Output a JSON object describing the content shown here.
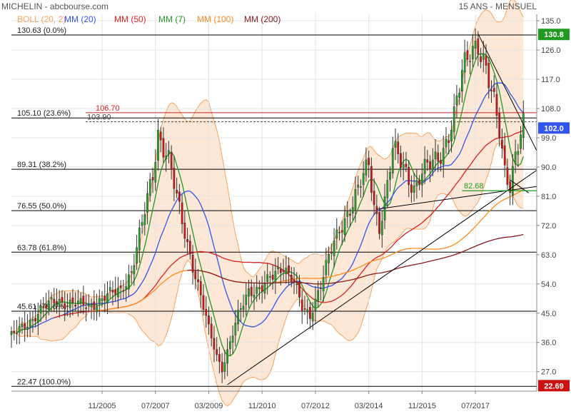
{
  "header": {
    "title": "MICHELIN - abcbourse.com",
    "period": "15 ANS - MENSUEL"
  },
  "legend": [
    {
      "label": "BOLL (20, 2)",
      "color": "#f4a460"
    },
    {
      "label": "MM (20)",
      "color": "#3355ee"
    },
    {
      "label": "MM (50)",
      "color": "#dd2222"
    },
    {
      "label": "MM (7)",
      "color": "#229922"
    },
    {
      "label": "MM (100)",
      "color": "#ff8c1a"
    },
    {
      "label": "MM (200)",
      "color": "#8b1a1a"
    }
  ],
  "chart_data": {
    "type": "candlestick",
    "x_tick_labels": [
      "11/2005",
      "07/2007",
      "03/2009",
      "11/2010",
      "07/2012",
      "03/2014",
      "11/2015",
      "07/2017"
    ],
    "x_tick_months": [
      35,
      55,
      75,
      95,
      115,
      135,
      155,
      175
    ],
    "x_range_months": [
      1,
      198
    ],
    "y_ticks": [
      27,
      36,
      45,
      54,
      63,
      72,
      81,
      90,
      99,
      108,
      117,
      126,
      135
    ],
    "y_range": [
      21,
      137
    ],
    "fibonacci_levels": [
      {
        "label": "130.63  (0.0%)",
        "value": 130.63
      },
      {
        "label": "105.10  (23.6%)",
        "value": 105.1
      },
      {
        "label": "89.31  (38.2%)",
        "value": 89.31
      },
      {
        "label": "76.55  (50.0%)",
        "value": 76.55
      },
      {
        "label": "63.78  (61.8%)",
        "value": 63.78
      },
      {
        "label": "45.61  (78.6%)",
        "value": 45.61
      },
      {
        "label": "22.47  (100.0%)",
        "value": 22.47
      }
    ],
    "annotations": [
      {
        "label": "106.70",
        "value": 106.7,
        "color": "#cc2222"
      },
      {
        "label": "103.90",
        "value": 103.9,
        "color": "#444444"
      },
      {
        "label": "82.68",
        "value": 82.68,
        "color": "#229922"
      }
    ],
    "price_labels": [
      {
        "label": "130.8",
        "value": 130.8,
        "color": "#229922"
      },
      {
        "label": "102.0",
        "value": 102.0,
        "color": "#3355ee"
      },
      {
        "label": "22.69",
        "value": 22.69,
        "color": "#cc1111"
      }
    ],
    "close_anchors": [
      [
        1,
        38
      ],
      [
        6,
        41
      ],
      [
        12,
        46
      ],
      [
        18,
        49
      ],
      [
        24,
        48
      ],
      [
        30,
        47
      ],
      [
        36,
        50
      ],
      [
        42,
        52
      ],
      [
        46,
        58
      ],
      [
        50,
        72
      ],
      [
        54,
        88
      ],
      [
        56,
        101
      ],
      [
        60,
        92
      ],
      [
        63,
        80
      ],
      [
        66,
        70
      ],
      [
        69,
        60
      ],
      [
        72,
        50
      ],
      [
        75,
        40
      ],
      [
        78,
        32
      ],
      [
        80,
        28
      ],
      [
        83,
        36
      ],
      [
        86,
        44
      ],
      [
        90,
        52
      ],
      [
        95,
        53
      ],
      [
        99,
        56
      ],
      [
        103,
        60
      ],
      [
        107,
        55
      ],
      [
        110,
        46
      ],
      [
        113,
        44
      ],
      [
        116,
        52
      ],
      [
        120,
        62
      ],
      [
        124,
        70
      ],
      [
        128,
        78
      ],
      [
        132,
        85
      ],
      [
        135,
        90
      ],
      [
        137,
        78
      ],
      [
        139,
        72
      ],
      [
        141,
        80
      ],
      [
        144,
        95
      ],
      [
        148,
        90
      ],
      [
        152,
        84
      ],
      [
        155,
        88
      ],
      [
        159,
        91
      ],
      [
        163,
        96
      ],
      [
        167,
        105
      ],
      [
        170,
        118
      ],
      [
        173,
        127
      ],
      [
        176,
        129
      ],
      [
        178,
        122
      ],
      [
        181,
        112
      ],
      [
        184,
        102
      ],
      [
        186,
        90
      ],
      [
        188,
        85
      ],
      [
        190,
        93
      ],
      [
        193,
        102
      ]
    ],
    "series": [
      {
        "name": "MM (7)",
        "color": "#229922"
      },
      {
        "name": "MM (20)",
        "color": "#3355ee"
      },
      {
        "name": "MM (50)",
        "color": "#dd2222"
      },
      {
        "name": "MM (100)",
        "color": "#ff8c1a"
      },
      {
        "name": "MM (200)",
        "color": "#8b1a1a"
      },
      {
        "name": "BOLL (20, 2)",
        "color": "#f4a460"
      }
    ],
    "trend_lines": [
      {
        "points": [
          [
            82,
            23
          ],
          [
            198,
            89
          ]
        ]
      },
      {
        "points": [
          [
            138,
            77
          ],
          [
            198,
            84
          ]
        ]
      },
      {
        "points": [
          [
            176,
            131
          ],
          [
            198,
            95
          ]
        ]
      },
      {
        "points": [
          [
            188,
            86
          ],
          [
            195,
            82
          ]
        ]
      },
      {
        "points": [
          [
            170,
            82.7
          ],
          [
            198,
            82.7
          ]
        ],
        "color": "#229922"
      }
    ]
  }
}
